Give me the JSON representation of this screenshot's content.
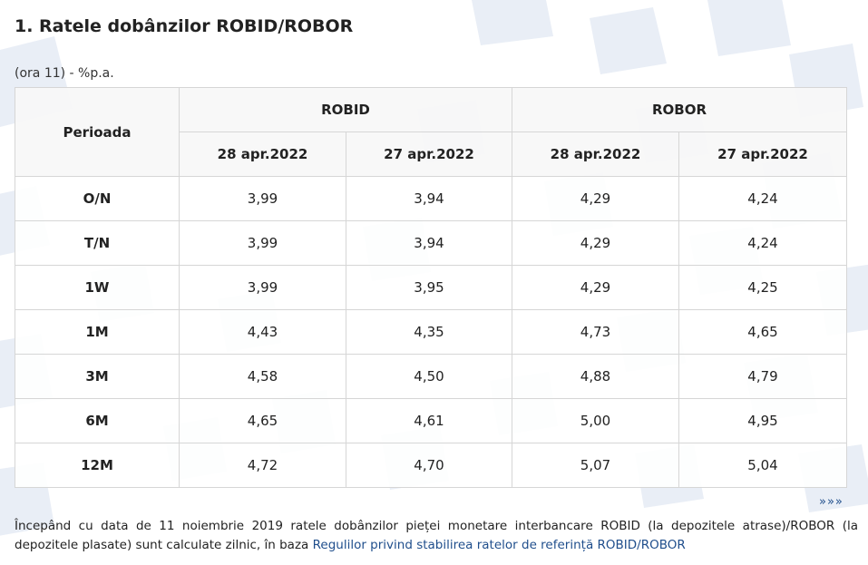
{
  "title": "1. Ratele dobânzilor ROBID/ROBOR",
  "unit_note": "(ora 11) - %p.a.",
  "table": {
    "period_header": "Perioada",
    "groups": [
      "ROBID",
      "ROBOR"
    ],
    "dates": [
      "28 apr.2022",
      "27 apr.2022",
      "28 apr.2022",
      "27 apr.2022"
    ],
    "rows": [
      {
        "period": "O/N",
        "values": [
          "3,99",
          "3,94",
          "4,29",
          "4,24"
        ]
      },
      {
        "period": "T/N",
        "values": [
          "3,99",
          "3,94",
          "4,29",
          "4,24"
        ]
      },
      {
        "period": "1W",
        "values": [
          "3,99",
          "3,95",
          "4,29",
          "4,25"
        ]
      },
      {
        "period": "1M",
        "values": [
          "4,43",
          "4,35",
          "4,73",
          "4,65"
        ]
      },
      {
        "period": "3M",
        "values": [
          "4,58",
          "4,50",
          "4,88",
          "4,79"
        ]
      },
      {
        "period": "6M",
        "values": [
          "4,65",
          "4,61",
          "5,00",
          "4,95"
        ]
      },
      {
        "period": "12M",
        "values": [
          "4,72",
          "4,70",
          "5,07",
          "5,04"
        ]
      }
    ]
  },
  "more_link": "»»»",
  "footnote": {
    "text": "Începând cu data de 11 noiembrie 2019 ratele dobânzilor pieței monetare interbancare ROBID (la depozitele atrase)/ROBOR (la depozitele plasate) sunt calculate zilnic, în baza ",
    "link_text": "Regulilor privind stabilirea ratelor de referință ROBID/ROBOR"
  },
  "colors": {
    "link": "#1f4e8c",
    "decor": "#e4ebf4",
    "border": "#d6d6d6"
  }
}
